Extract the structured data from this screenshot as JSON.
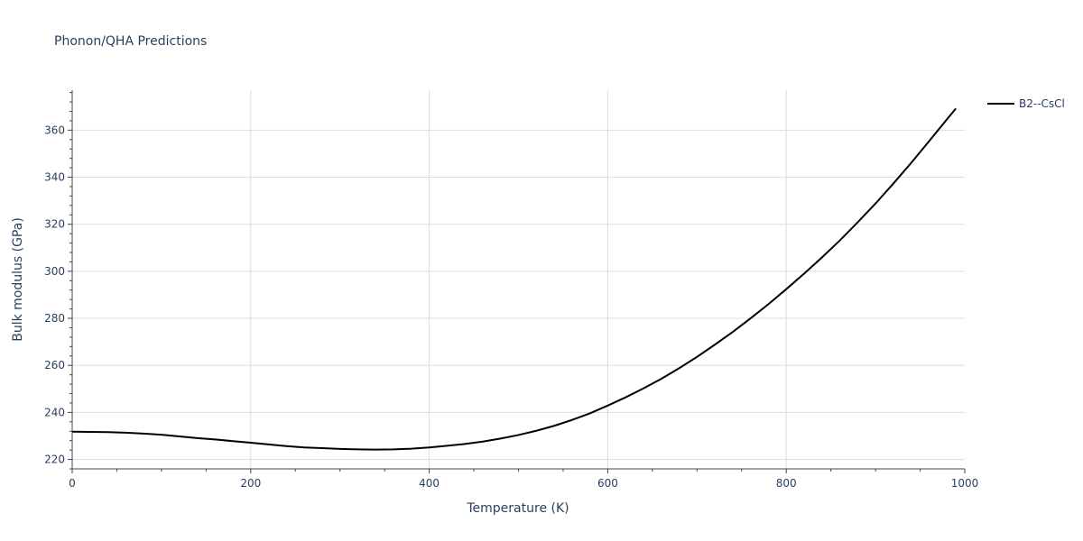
{
  "chart_data": {
    "type": "line",
    "title": "Phonon/QHA Predictions",
    "xlabel": "Temperature (K)",
    "ylabel": "Bulk modulus (GPa)",
    "xlim": [
      0,
      1000
    ],
    "ylim": [
      216,
      377
    ],
    "x_ticks": [
      0,
      200,
      400,
      600,
      800,
      1000
    ],
    "y_ticks": [
      220,
      240,
      260,
      280,
      300,
      320,
      340,
      360
    ],
    "x_tick_labels": [
      "0",
      "200",
      "400",
      "600",
      "800",
      "1000"
    ],
    "y_tick_labels": [
      "220",
      "240",
      "260",
      "280",
      "300",
      "320",
      "340",
      "360"
    ],
    "grid": true,
    "legend_position": "top-right",
    "series": [
      {
        "name": "B2--CsCl",
        "color": "#000000",
        "x": [
          0,
          20,
          40,
          60,
          80,
          100,
          120,
          140,
          160,
          180,
          200,
          220,
          240,
          260,
          280,
          300,
          320,
          340,
          360,
          380,
          400,
          420,
          440,
          460,
          480,
          500,
          520,
          540,
          560,
          580,
          600,
          620,
          640,
          660,
          680,
          700,
          720,
          740,
          760,
          780,
          800,
          820,
          840,
          860,
          880,
          900,
          920,
          940,
          960,
          980,
          990
        ],
        "y": [
          231.8,
          231.7,
          231.6,
          231.4,
          231.0,
          230.5,
          229.8,
          229.1,
          228.5,
          227.8,
          227.1,
          226.4,
          225.7,
          225.1,
          224.8,
          224.5,
          224.3,
          224.2,
          224.3,
          224.6,
          225.1,
          225.8,
          226.6,
          227.6,
          228.9,
          230.4,
          232.2,
          234.3,
          236.8,
          239.6,
          242.9,
          246.4,
          250.2,
          254.3,
          258.8,
          263.6,
          268.8,
          274.2,
          280.0,
          286.0,
          292.4,
          299.0,
          305.9,
          313.1,
          320.8,
          328.8,
          337.3,
          346.1,
          355.3,
          364.6,
          369.2
        ]
      }
    ]
  }
}
